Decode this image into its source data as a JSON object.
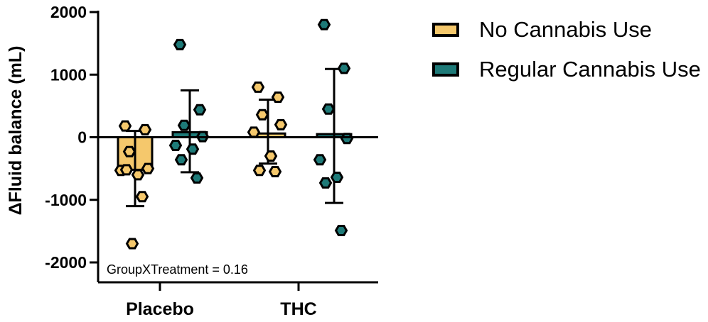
{
  "chart_data": {
    "type": "bar",
    "ylabel": "ΔFluid balance (mL)",
    "ylim": [
      -2000,
      2000
    ],
    "yticks": [
      2000,
      1000,
      0,
      -1000,
      -2000
    ],
    "ytick_labels": [
      "2000",
      "1000",
      "0",
      "-1000",
      "-2000"
    ],
    "categories": [
      "Placebo",
      "THC"
    ],
    "annotation": "GroupXTreatment = 0.16",
    "series": [
      {
        "name": "No Cannabis Use",
        "color": "#F5C86C",
        "means": [
          -520,
          60
        ],
        "error": [
          [
            -1100,
            100
          ],
          [
            -420,
            600
          ]
        ],
        "points": [
          [
            180,
            120,
            -230,
            -500,
            -530,
            -600,
            -520,
            -950,
            -1700
          ],
          [
            800,
            640,
            360,
            200,
            80,
            -300,
            -530,
            -550
          ]
        ]
      },
      {
        "name": "Regular Cannabis Use",
        "color": "#1E7A78",
        "means": [
          80,
          50
        ],
        "error": [
          [
            -560,
            750
          ],
          [
            -1050,
            1090
          ]
        ],
        "points": [
          [
            1480,
            440,
            190,
            10,
            -130,
            -190,
            -360,
            -650
          ],
          [
            1800,
            1100,
            450,
            -20,
            -360,
            -640,
            -730,
            -1490
          ]
        ]
      }
    ]
  }
}
